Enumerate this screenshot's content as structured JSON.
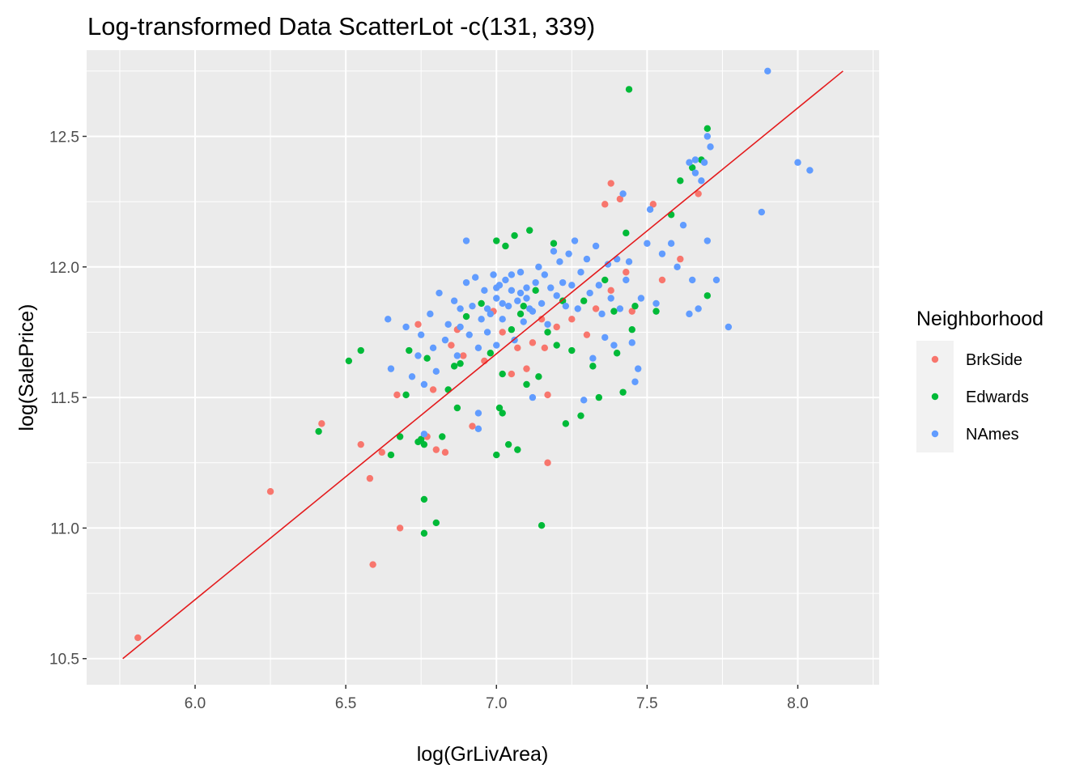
{
  "chart_data": {
    "type": "scatter",
    "title": "Log-transformed Data ScatterLot -c(131, 339)",
    "xlabel": "log(GrLivArea)",
    "ylabel": "log(SalePrice)",
    "xlim": [
      5.64,
      8.27
    ],
    "ylim": [
      10.4,
      12.83
    ],
    "x_ticks": [
      6.0,
      6.5,
      7.0,
      7.5,
      8.0
    ],
    "x_tick_labels": [
      "6.0",
      "6.5",
      "7.0",
      "7.5",
      "8.0"
    ],
    "y_ticks": [
      10.5,
      11.0,
      11.5,
      12.0,
      12.5
    ],
    "y_tick_labels": [
      "10.5",
      "11.0",
      "11.5",
      "12.0",
      "12.5"
    ],
    "grid": true,
    "panel_background": "#ebebeb",
    "legend": {
      "title": "Neighborhood",
      "position": "right"
    },
    "fit_line": {
      "x": [
        5.76,
        8.15
      ],
      "y": [
        10.5,
        12.75
      ],
      "color": "#e41a1c"
    },
    "series": [
      {
        "name": "BrkSide",
        "color": "#f8766d",
        "points": [
          [
            5.81,
            10.58
          ],
          [
            6.25,
            11.14
          ],
          [
            6.42,
            11.4
          ],
          [
            6.55,
            11.32
          ],
          [
            6.58,
            11.19
          ],
          [
            6.59,
            10.86
          ],
          [
            6.62,
            11.29
          ],
          [
            6.67,
            11.51
          ],
          [
            6.68,
            11.0
          ],
          [
            6.74,
            11.78
          ],
          [
            6.79,
            11.53
          ],
          [
            6.83,
            11.29
          ],
          [
            6.8,
            11.3
          ],
          [
            6.77,
            11.35
          ],
          [
            6.85,
            11.7
          ],
          [
            6.87,
            11.76
          ],
          [
            6.89,
            11.66
          ],
          [
            6.92,
            11.39
          ],
          [
            6.96,
            11.64
          ],
          [
            6.99,
            11.83
          ],
          [
            7.02,
            11.75
          ],
          [
            7.05,
            11.59
          ],
          [
            7.07,
            11.69
          ],
          [
            7.1,
            11.61
          ],
          [
            7.12,
            11.71
          ],
          [
            7.15,
            11.8
          ],
          [
            7.16,
            11.69
          ],
          [
            7.17,
            11.51
          ],
          [
            7.17,
            11.25
          ],
          [
            7.2,
            11.77
          ],
          [
            7.25,
            11.8
          ],
          [
            7.3,
            11.74
          ],
          [
            7.33,
            11.84
          ],
          [
            7.36,
            12.24
          ],
          [
            7.38,
            12.32
          ],
          [
            7.38,
            11.91
          ],
          [
            7.41,
            12.26
          ],
          [
            7.43,
            11.98
          ],
          [
            7.45,
            11.83
          ],
          [
            7.52,
            12.24
          ],
          [
            7.61,
            12.03
          ],
          [
            7.67,
            12.28
          ],
          [
            7.55,
            11.95
          ]
        ]
      },
      {
        "name": "Edwards",
        "color": "#00ba38",
        "points": [
          [
            6.41,
            11.37
          ],
          [
            6.51,
            11.64
          ],
          [
            6.55,
            11.68
          ],
          [
            6.65,
            11.28
          ],
          [
            6.68,
            11.35
          ],
          [
            6.7,
            11.51
          ],
          [
            6.71,
            11.68
          ],
          [
            6.74,
            11.33
          ],
          [
            6.75,
            11.34
          ],
          [
            6.76,
            11.32
          ],
          [
            6.76,
            11.11
          ],
          [
            6.76,
            10.98
          ],
          [
            6.77,
            11.65
          ],
          [
            6.8,
            11.02
          ],
          [
            6.82,
            11.35
          ],
          [
            6.84,
            11.53
          ],
          [
            6.86,
            11.62
          ],
          [
            6.87,
            11.46
          ],
          [
            6.88,
            11.63
          ],
          [
            6.9,
            11.81
          ],
          [
            6.95,
            11.86
          ],
          [
            6.98,
            11.67
          ],
          [
            7.0,
            11.28
          ],
          [
            7.01,
            11.46
          ],
          [
            7.02,
            11.59
          ],
          [
            7.02,
            11.44
          ],
          [
            7.04,
            11.32
          ],
          [
            7.05,
            11.76
          ],
          [
            7.07,
            11.3
          ],
          [
            7.08,
            11.82
          ],
          [
            7.09,
            11.85
          ],
          [
            7.1,
            11.55
          ],
          [
            7.11,
            12.14
          ],
          [
            7.13,
            11.91
          ],
          [
            7.14,
            11.58
          ],
          [
            7.15,
            11.01
          ],
          [
            7.17,
            11.75
          ],
          [
            7.19,
            12.09
          ],
          [
            7.2,
            11.7
          ],
          [
            7.22,
            11.87
          ],
          [
            7.23,
            11.4
          ],
          [
            7.25,
            11.68
          ],
          [
            7.28,
            11.43
          ],
          [
            7.29,
            11.87
          ],
          [
            7.32,
            11.62
          ],
          [
            7.34,
            11.5
          ],
          [
            7.36,
            11.95
          ],
          [
            7.39,
            11.83
          ],
          [
            7.4,
            11.67
          ],
          [
            7.42,
            11.52
          ],
          [
            7.43,
            12.13
          ],
          [
            7.44,
            12.68
          ],
          [
            7.45,
            11.76
          ],
          [
            7.46,
            11.85
          ],
          [
            7.53,
            11.83
          ],
          [
            7.58,
            12.2
          ],
          [
            7.61,
            12.33
          ],
          [
            7.65,
            12.38
          ],
          [
            7.68,
            12.41
          ],
          [
            7.7,
            12.53
          ],
          [
            7.7,
            11.89
          ],
          [
            7.03,
            12.08
          ],
          [
            7.06,
            12.12
          ],
          [
            7.0,
            12.1
          ]
        ]
      },
      {
        "name": "NAmes",
        "color": "#619cff",
        "points": [
          [
            6.64,
            11.8
          ],
          [
            6.65,
            11.61
          ],
          [
            6.7,
            11.77
          ],
          [
            6.72,
            11.58
          ],
          [
            6.74,
            11.66
          ],
          [
            6.75,
            11.74
          ],
          [
            6.76,
            11.55
          ],
          [
            6.76,
            11.36
          ],
          [
            6.78,
            11.82
          ],
          [
            6.79,
            11.69
          ],
          [
            6.8,
            11.6
          ],
          [
            6.81,
            11.9
          ],
          [
            6.83,
            11.72
          ],
          [
            6.84,
            11.78
          ],
          [
            6.86,
            11.87
          ],
          [
            6.87,
            11.66
          ],
          [
            6.88,
            11.77
          ],
          [
            6.9,
            11.94
          ],
          [
            6.9,
            12.1
          ],
          [
            6.91,
            11.74
          ],
          [
            6.92,
            11.85
          ],
          [
            6.93,
            11.96
          ],
          [
            6.94,
            11.69
          ],
          [
            6.94,
            11.38
          ],
          [
            6.94,
            11.44
          ],
          [
            6.95,
            11.8
          ],
          [
            6.96,
            11.91
          ],
          [
            6.97,
            11.75
          ],
          [
            6.98,
            11.82
          ],
          [
            6.99,
            11.97
          ],
          [
            7.0,
            11.88
          ],
          [
            7.0,
            11.7
          ],
          [
            7.01,
            11.93
          ],
          [
            7.02,
            11.8
          ],
          [
            7.03,
            11.95
          ],
          [
            7.04,
            11.85
          ],
          [
            7.05,
            11.91
          ],
          [
            7.06,
            11.72
          ],
          [
            7.07,
            11.87
          ],
          [
            7.08,
            11.98
          ],
          [
            7.09,
            11.79
          ],
          [
            7.1,
            11.92
          ],
          [
            7.11,
            11.84
          ],
          [
            7.12,
            11.5
          ],
          [
            7.13,
            11.94
          ],
          [
            7.14,
            12.0
          ],
          [
            7.15,
            11.86
          ],
          [
            7.16,
            11.97
          ],
          [
            7.17,
            11.78
          ],
          [
            7.18,
            11.92
          ],
          [
            7.19,
            12.06
          ],
          [
            7.2,
            11.89
          ],
          [
            7.21,
            12.02
          ],
          [
            7.22,
            11.94
          ],
          [
            7.23,
            11.85
          ],
          [
            7.24,
            12.05
          ],
          [
            7.25,
            11.93
          ],
          [
            7.26,
            12.1
          ],
          [
            7.27,
            11.84
          ],
          [
            7.28,
            11.98
          ],
          [
            7.29,
            11.49
          ],
          [
            7.3,
            12.03
          ],
          [
            7.31,
            11.9
          ],
          [
            7.32,
            11.65
          ],
          [
            7.33,
            12.08
          ],
          [
            7.34,
            11.93
          ],
          [
            7.35,
            11.82
          ],
          [
            7.36,
            11.73
          ],
          [
            7.37,
            12.01
          ],
          [
            7.38,
            11.88
          ],
          [
            7.39,
            11.7
          ],
          [
            7.4,
            12.03
          ],
          [
            7.41,
            11.84
          ],
          [
            7.42,
            12.28
          ],
          [
            7.43,
            11.95
          ],
          [
            7.44,
            12.02
          ],
          [
            7.45,
            11.71
          ],
          [
            7.46,
            11.56
          ],
          [
            7.47,
            11.61
          ],
          [
            7.48,
            11.88
          ],
          [
            7.5,
            12.09
          ],
          [
            7.51,
            12.22
          ],
          [
            7.53,
            11.86
          ],
          [
            7.55,
            12.05
          ],
          [
            7.58,
            12.09
          ],
          [
            7.6,
            12.0
          ],
          [
            7.62,
            12.16
          ],
          [
            7.64,
            12.4
          ],
          [
            7.64,
            11.82
          ],
          [
            7.65,
            11.95
          ],
          [
            7.66,
            12.36
          ],
          [
            7.66,
            12.41
          ],
          [
            7.67,
            11.84
          ],
          [
            7.68,
            12.33
          ],
          [
            7.69,
            12.4
          ],
          [
            7.7,
            12.5
          ],
          [
            7.7,
            12.1
          ],
          [
            7.71,
            12.46
          ],
          [
            7.73,
            11.95
          ],
          [
            7.77,
            11.77
          ],
          [
            7.88,
            12.21
          ],
          [
            7.9,
            12.75
          ],
          [
            8.0,
            12.4
          ],
          [
            8.04,
            12.37
          ],
          [
            6.88,
            11.84
          ],
          [
            6.97,
            11.84
          ],
          [
            7.0,
            11.92
          ],
          [
            7.02,
            11.86
          ],
          [
            7.05,
            11.97
          ],
          [
            7.08,
            11.9
          ],
          [
            7.1,
            11.88
          ],
          [
            7.12,
            11.83
          ]
        ]
      }
    ]
  }
}
